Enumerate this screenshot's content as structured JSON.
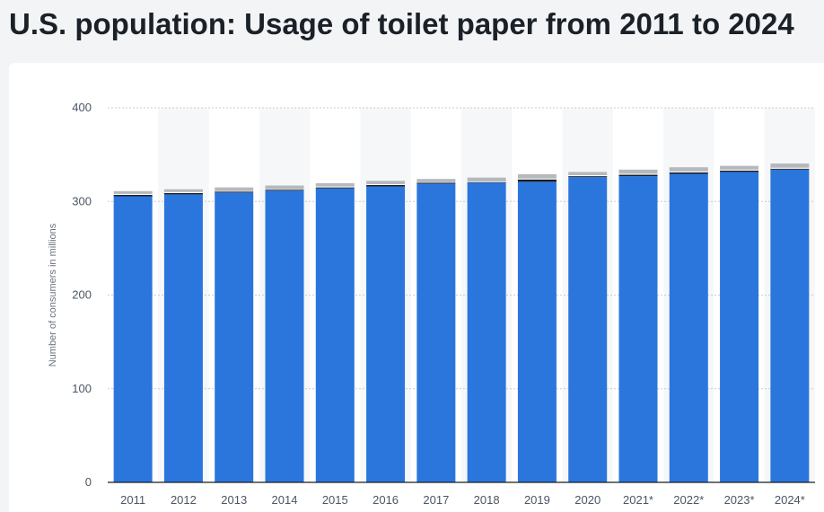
{
  "page": {
    "title": "U.S. population: Usage of toilet paper from 2011 to 2024"
  },
  "chart_data": {
    "type": "bar",
    "stacked": true,
    "title": "U.S. population: Usage of toilet paper from 2011 to 2024",
    "xlabel": "",
    "ylabel": "Number of consumers in millions",
    "ylim": [
      0,
      400
    ],
    "yticks": [
      0,
      100,
      200,
      300,
      400
    ],
    "grid": true,
    "legend": "none",
    "categories": [
      "2011",
      "2012",
      "2013",
      "2014",
      "2015",
      "2016",
      "2017",
      "2018",
      "2019",
      "2020",
      "2021*",
      "2022*",
      "2023*",
      "2024*"
    ],
    "series": [
      {
        "color": "#2a76dd",
        "values": [
          305.5,
          307.5,
          309.5,
          311.5,
          314,
          316,
          319,
          320,
          321,
          326,
          327,
          329.5,
          331.5,
          334
        ]
      },
      {
        "color": "#1b1d22",
        "values": [
          1.5,
          1.5,
          1,
          1,
          1,
          1.5,
          1,
          0.5,
          2.5,
          1,
          1.5,
          1.5,
          1.5,
          1
        ]
      },
      {
        "color": "#ffffff",
        "values": [
          1,
          1,
          0.5,
          0.5,
          1,
          1,
          0.5,
          0.5,
          1,
          1,
          1,
          1,
          1,
          1
        ]
      },
      {
        "color": "#b5b8bd",
        "values": [
          3,
          3,
          4,
          4,
          3.5,
          3.5,
          3.5,
          4.5,
          4.5,
          3.5,
          4.5,
          4.5,
          4,
          4.5
        ]
      }
    ],
    "colors": {
      "band": "#f6f7f8",
      "grid": "#c9ccd1",
      "axis": "#1b1d22"
    }
  }
}
